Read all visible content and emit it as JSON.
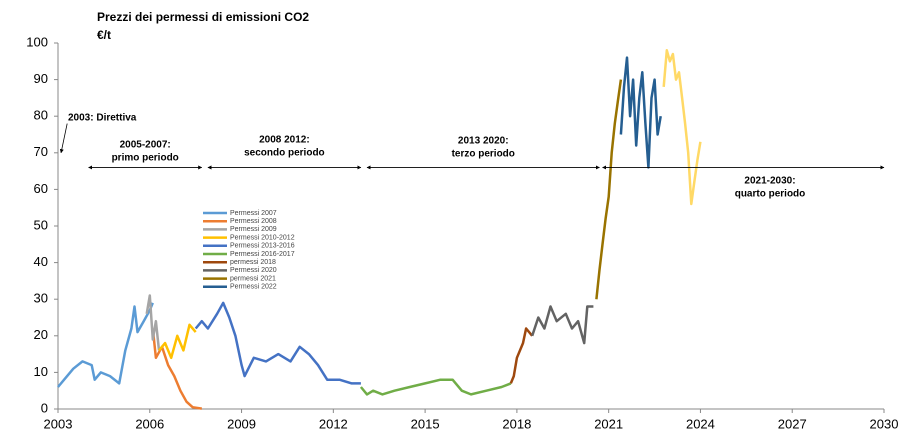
{
  "chart_data": {
    "type": "line",
    "title": "Prezzi dei permessi di emissioni CO2",
    "subtitle": "€/t",
    "xlim": [
      2003,
      2030
    ],
    "xticks": [
      2003,
      2006,
      2009,
      2012,
      2015,
      2018,
      2021,
      2024,
      2027,
      2030
    ],
    "ylim": [
      0,
      100
    ],
    "yticks": [
      0,
      10,
      20,
      30,
      40,
      50,
      60,
      70,
      80,
      90,
      100
    ],
    "grid": false,
    "annotations": [
      {
        "lines": [
          "2003: Direttiva"
        ],
        "arrow": [
          2003.3,
          2003.1
        ],
        "y": [
          78,
          70
        ]
      },
      {
        "lines": [
          "2005-2007:",
          "primo periodo"
        ],
        "arrow": [
          2004.0,
          2007.7
        ],
        "y": [
          66,
          66
        ]
      },
      {
        "lines": [
          "2008 2012:",
          "secondo periodo"
        ],
        "arrow": [
          2007.9,
          2012.9
        ],
        "y": [
          66,
          66
        ]
      },
      {
        "lines": [
          "2013 2020:",
          "terzo periodo"
        ],
        "arrow": [
          2013.1,
          2020.7
        ],
        "y": [
          66,
          66
        ]
      },
      {
        "lines": [
          "2021-2030:",
          "quarto periodo"
        ],
        "arrow": [
          2020.8,
          2030.0
        ],
        "y": [
          66,
          66
        ]
      }
    ],
    "series": [
      {
        "name": "Permessi 2007",
        "color": "#5b9bd5",
        "x": [
          2003.0,
          2003.2,
          2003.5,
          2003.8,
          2004.1,
          2004.2,
          2004.4,
          2004.7,
          2005.0,
          2005.2,
          2005.4,
          2005.5,
          2005.6,
          2005.8,
          2006.0,
          2006.1
        ],
        "values": [
          6,
          8,
          11,
          13,
          12,
          8,
          10,
          9,
          7,
          16,
          22,
          28,
          21,
          24,
          27,
          29
        ]
      },
      {
        "name": "Permessi 2008",
        "color": "#ed7d31",
        "x": [
          2006.1,
          2006.2,
          2006.4,
          2006.6,
          2006.8,
          2007.0,
          2007.2,
          2007.4,
          2007.7
        ],
        "values": [
          22,
          14,
          17,
          12,
          9,
          5,
          2,
          0.5,
          0.1
        ]
      },
      {
        "name": "Permessi 2009",
        "color": "#a5a5a5",
        "x": [
          2005.9,
          2006.0,
          2006.1,
          2006.2,
          2006.3
        ],
        "values": [
          26,
          31,
          19,
          24,
          16
        ]
      },
      {
        "name": "Permessi 2010-2012",
        "color": "#ffc000",
        "x": [
          2006.3,
          2006.5,
          2006.7,
          2006.9,
          2007.1,
          2007.3,
          2007.5
        ],
        "values": [
          16,
          18,
          14,
          20,
          16,
          23,
          21
        ]
      },
      {
        "name": "Permessi 2013-2016",
        "color": "#4472c4",
        "x": [
          2007.5,
          2007.7,
          2007.9,
          2008.2,
          2008.4,
          2008.6,
          2008.8,
          2009.0,
          2009.1,
          2009.4,
          2009.8,
          2010.2,
          2010.6,
          2010.9,
          2011.2,
          2011.5,
          2011.8,
          2012.2,
          2012.6,
          2012.9
        ],
        "values": [
          22,
          24,
          22,
          26,
          29,
          25,
          20,
          12,
          9,
          14,
          13,
          15,
          13,
          17,
          15,
          12,
          8,
          8,
          7,
          7
        ]
      },
      {
        "name": "Permessi 2016-2017",
        "color": "#70ad47",
        "x": [
          2012.9,
          2013.1,
          2013.3,
          2013.6,
          2014.0,
          2014.5,
          2015.0,
          2015.5,
          2015.9,
          2016.2,
          2016.5,
          2017.0,
          2017.5,
          2017.8
        ],
        "values": [
          6,
          4,
          5,
          4,
          5,
          6,
          7,
          8,
          8,
          5,
          4,
          5,
          6,
          7
        ]
      },
      {
        "name": "permessi 2018",
        "color": "#9e480e",
        "x": [
          2017.8,
          2017.9,
          2018.0,
          2018.2,
          2018.3,
          2018.5
        ],
        "values": [
          7,
          9,
          14,
          18,
          22,
          20
        ]
      },
      {
        "name": "Permessi 2020",
        "color": "#636363",
        "x": [
          2018.5,
          2018.7,
          2018.9,
          2019.1,
          2019.3,
          2019.6,
          2019.8,
          2020.0,
          2020.2,
          2020.3,
          2020.5
        ],
        "values": [
          20,
          25,
          22,
          28,
          24,
          26,
          22,
          24,
          18,
          28,
          28
        ]
      },
      {
        "name": "permessi 2021",
        "color": "#997300",
        "x": [
          2020.6,
          2020.7,
          2020.8,
          2020.9,
          2021.0,
          2021.1,
          2021.2,
          2021.3,
          2021.4
        ],
        "values": [
          30,
          38,
          45,
          52,
          58,
          70,
          78,
          84,
          90
        ]
      },
      {
        "name": "Permessi 2022",
        "color": "#255e91",
        "x": [
          2021.4,
          2021.5,
          2021.6,
          2021.7,
          2021.8,
          2021.9,
          2022.0,
          2022.1,
          2022.2,
          2022.3,
          2022.4,
          2022.5,
          2022.6,
          2022.7
        ],
        "values": [
          75,
          88,
          96,
          80,
          90,
          72,
          85,
          92,
          78,
          66,
          85,
          90,
          75,
          80
        ]
      },
      {
        "color": "#ffd966",
        "x": [
          2022.8,
          2022.9,
          2023.0,
          2023.1,
          2023.2,
          2023.3,
          2023.4,
          2023.5,
          2023.6,
          2023.7,
          2023.8,
          2023.9,
          2024.0
        ],
        "values": [
          88,
          98,
          95,
          97,
          90,
          92,
          85,
          78,
          70,
          56,
          62,
          68,
          73
        ]
      }
    ]
  }
}
